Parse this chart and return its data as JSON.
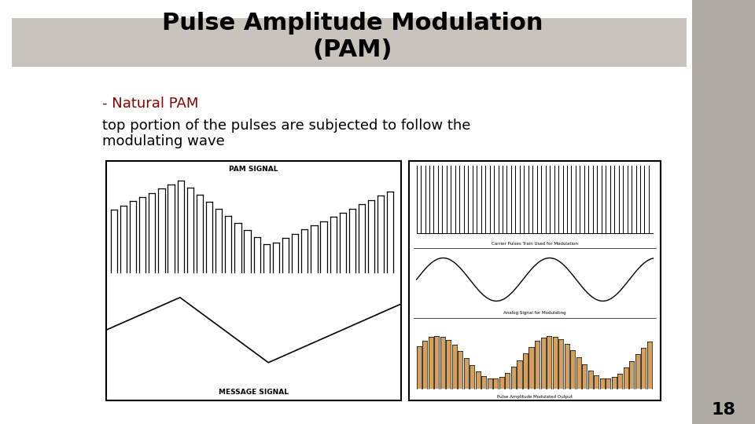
{
  "title_line1": "Pulse Amplitude Modulation",
  "title_line2": "(PAM)",
  "subtitle_color": "#8B0000",
  "subtitle_text": "- Natural PAM",
  "body_text_line1": "top portion of the pulses are subjected to follow the",
  "body_text_line2": "modulating wave",
  "bg_color": "#ffffff",
  "title_bg_color": "#c8c4bc",
  "slide_bg_color": "#b0aba3",
  "page_number": "18",
  "title_fontsize": 22,
  "subtitle_fontsize": 13,
  "body_fontsize": 13
}
